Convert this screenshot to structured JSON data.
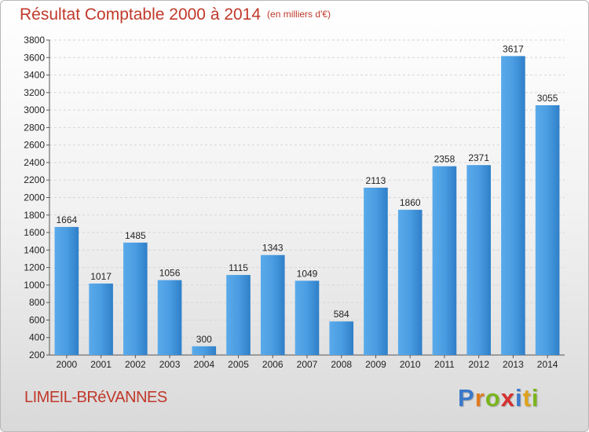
{
  "chart_data": {
    "type": "bar",
    "title": "Résultat Comptable 2000 à 2014",
    "subtitle": "(en milliers d'€)",
    "categories": [
      "2000",
      "2001",
      "2002",
      "2003",
      "2004",
      "2005",
      "2006",
      "2007",
      "2008",
      "2009",
      "2010",
      "2011",
      "2012",
      "2013",
      "2014"
    ],
    "values": [
      1664,
      1017,
      1485,
      1056,
      300,
      1115,
      1343,
      1049,
      584,
      2113,
      1860,
      2358,
      2371,
      3617,
      3055
    ],
    "ylim": [
      200,
      3800
    ],
    "yticks": [
      200,
      400,
      600,
      800,
      1000,
      1200,
      1400,
      1600,
      1800,
      2000,
      2200,
      2400,
      2600,
      2800,
      3000,
      3200,
      3400,
      3600,
      3800
    ],
    "bar_color": "#3a8fd6",
    "grid": true
  },
  "footer": {
    "city": "LIMEIL-BRéVANNES",
    "logo": [
      "P",
      "r",
      "o",
      "x",
      "i",
      "t",
      "i"
    ],
    "logo_colors": [
      "#3a78c9",
      "#e07b1f",
      "#7ab51d",
      "#d62f2f",
      "#3a78c9",
      "#e0a21f",
      "#7ab51d"
    ]
  }
}
